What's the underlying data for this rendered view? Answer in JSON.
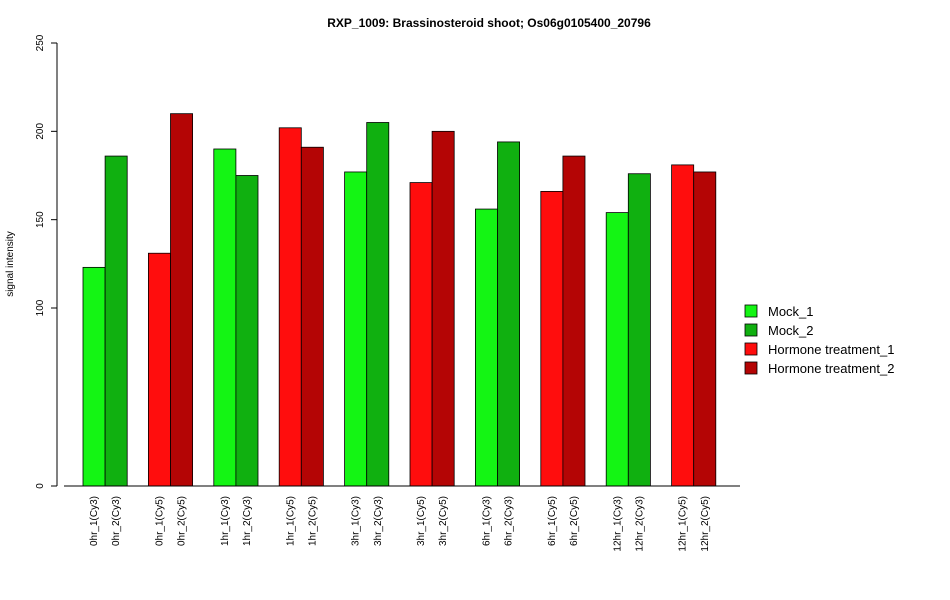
{
  "chart_data": {
    "type": "bar",
    "title": "RXP_1009: Brassinosteroid shoot; Os06g0105400_20796",
    "ylabel": "signal intensity",
    "xlabel": "",
    "ylim": [
      0,
      250
    ],
    "yticks": [
      0,
      100,
      150,
      200,
      250
    ],
    "y_scale_note": "",
    "categories": [
      "0hr_1(Cy3)",
      "0hr_2(Cy3)",
      "0hr_1(Cy5)",
      "0hr_2(Cy5)",
      "1hr_1(Cy3)",
      "1hr_2(Cy3)",
      "1hr_1(Cy5)",
      "1hr_2(Cy5)",
      "3hr_1(Cy3)",
      "3hr_2(Cy3)",
      "3hr_1(Cy5)",
      "3hr_2(Cy5)",
      "6hr_1(Cy3)",
      "6hr_2(Cy3)",
      "6hr_1(Cy5)",
      "6hr_2(Cy5)",
      "12hr_1(Cy3)",
      "12hr_2(Cy3)",
      "12hr_1(Cy5)",
      "12hr_2(Cy5)"
    ],
    "values": [
      123,
      186,
      131,
      210,
      190,
      175,
      202,
      191,
      177,
      205,
      171,
      200,
      156,
      194,
      166,
      186,
      154,
      176,
      181,
      177
    ],
    "bar_series": [
      0,
      1,
      2,
      3,
      0,
      1,
      2,
      3,
      0,
      1,
      2,
      3,
      0,
      1,
      2,
      3,
      0,
      1,
      2,
      3
    ],
    "legend_position": "right",
    "legend": [
      {
        "name": "Mock_1",
        "color": "#14f514"
      },
      {
        "name": "Mock_2",
        "color": "#10b010"
      },
      {
        "name": "Hormone treatment_1",
        "color": "#ff0d0d"
      },
      {
        "name": "Hormone treatment_2",
        "color": "#b40505"
      }
    ]
  }
}
